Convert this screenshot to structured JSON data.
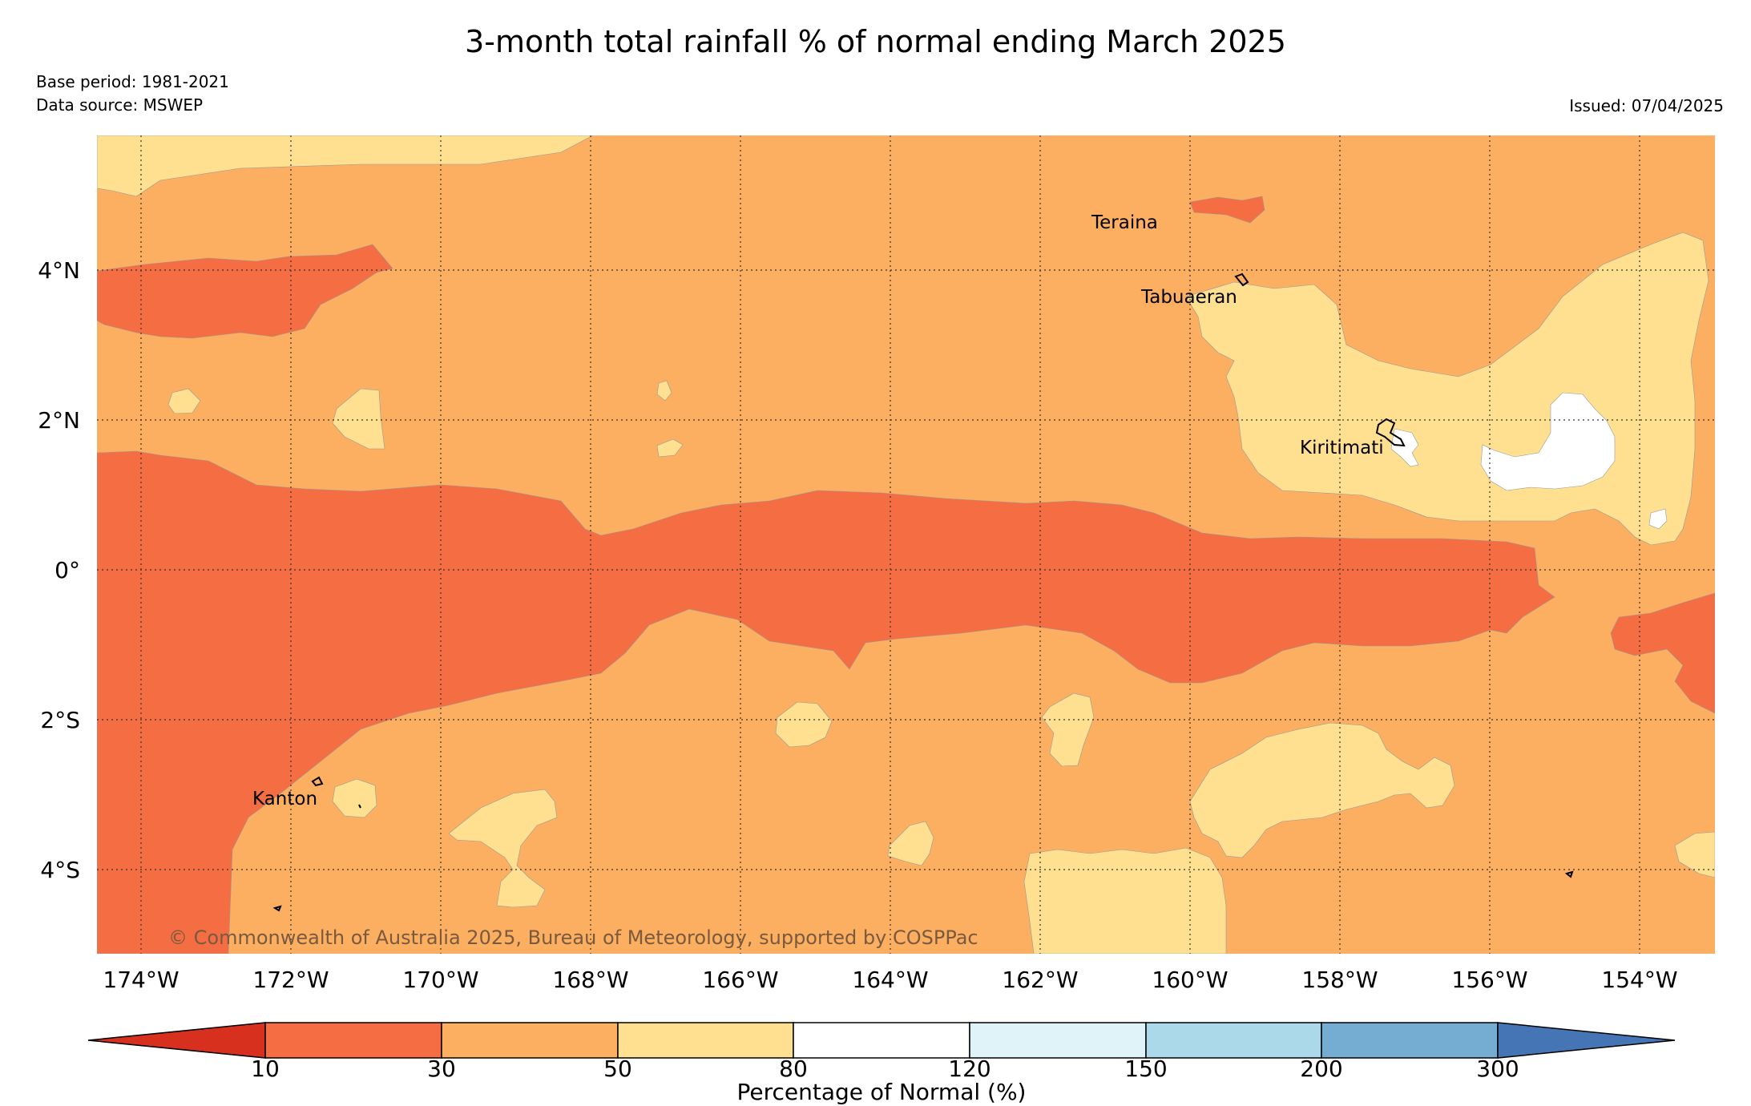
{
  "title": "3-month total rainfall % of normal ending March 2025",
  "base_period": "Base period: 1981-2021",
  "data_source": "Data source: MSWEP",
  "issued": "Issued: 07/04/2025",
  "copyright": "© Commonwealth of Australia 2025, Bureau of Meteorology, supported by COSPPac",
  "colors": {
    "below_10": "#d7301f",
    "10_30": "#f46d43",
    "30_50": "#fcae61",
    "50_80": "#fee090",
    "80_120": "#ffffff",
    "120_150": "#e0f3f8",
    "150_200": "#abd9e9",
    "200_300": "#74add1",
    "above_300": "#4575b4"
  },
  "axes": {
    "lon_labels": [
      "174°W",
      "172°W",
      "170°W",
      "168°W",
      "166°W",
      "164°W",
      "162°W",
      "160°W",
      "158°W",
      "156°W",
      "154°W"
    ],
    "lat_labels": [
      "4°N",
      "2°N",
      "0°",
      "2°S",
      "4°S"
    ]
  },
  "places": {
    "teraina": "Teraina",
    "tabuaeran": "Tabuaeran",
    "kiritimati": "Kiritimati",
    "kanton": "Kanton"
  },
  "colorbar": {
    "title": "Percentage of Normal (%)",
    "ticks": [
      "10",
      "30",
      "50",
      "80",
      "120",
      "150",
      "200",
      "300"
    ]
  }
}
